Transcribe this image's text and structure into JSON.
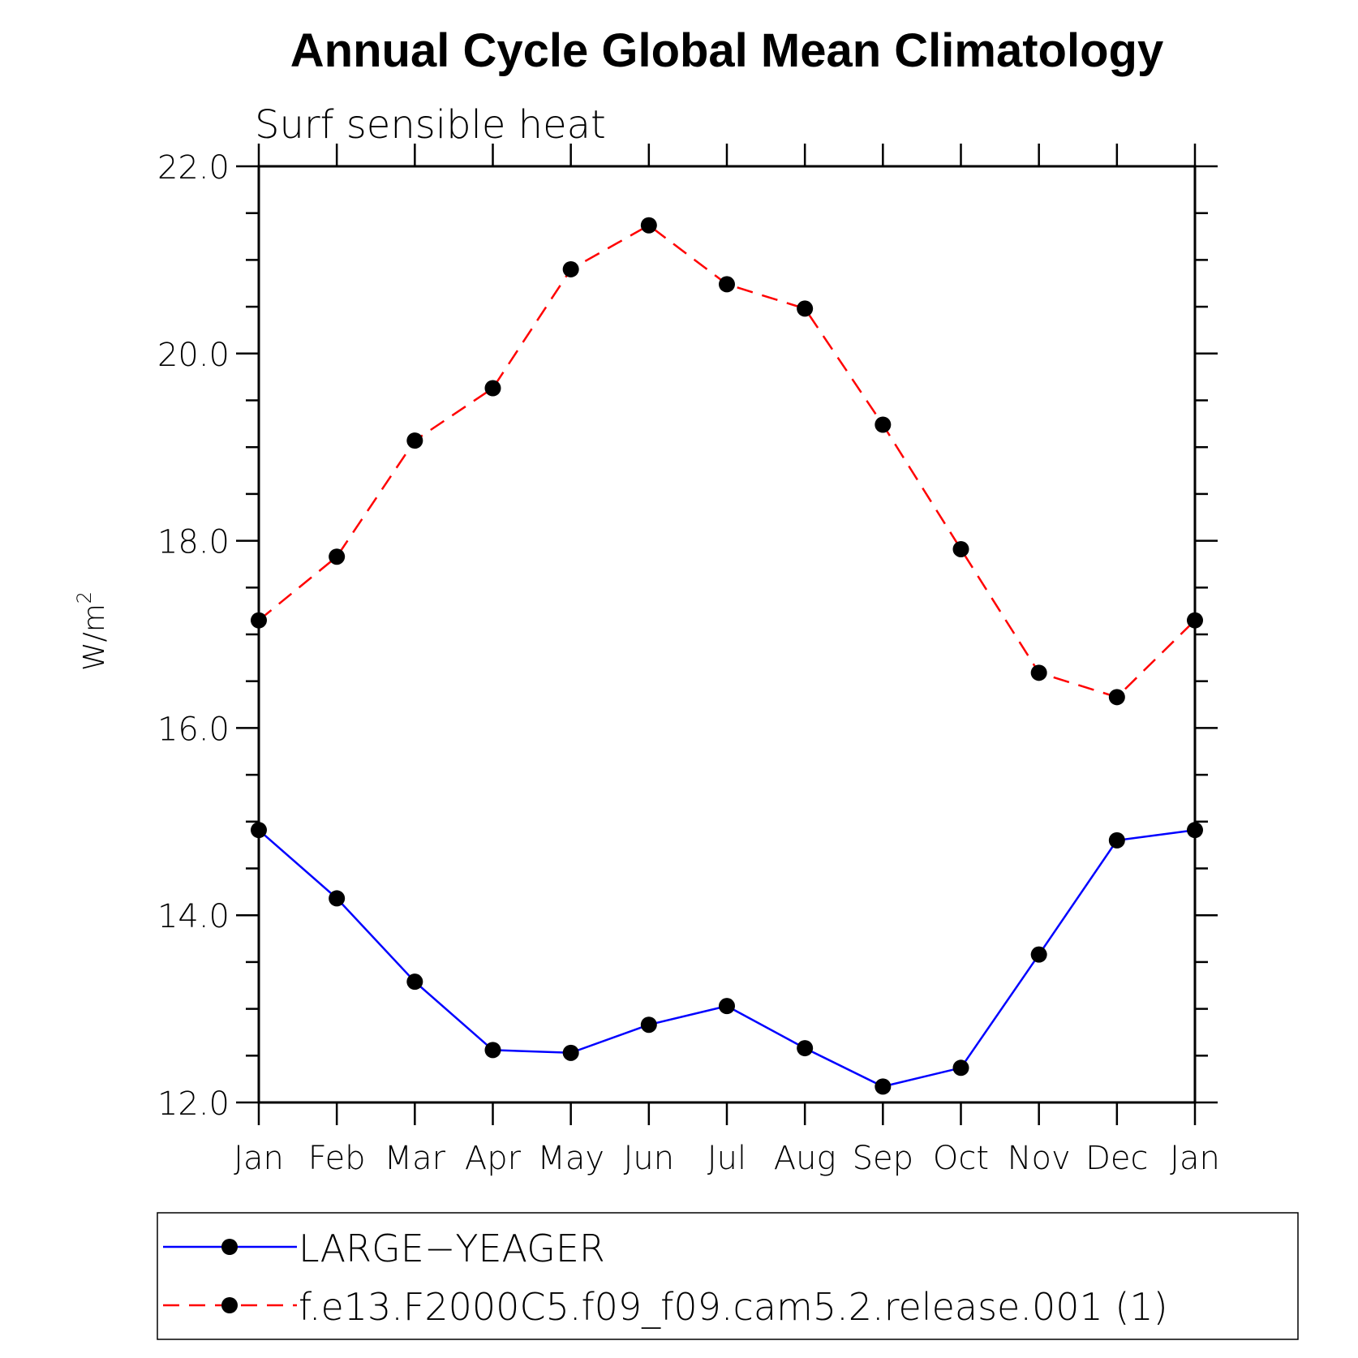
{
  "chart_data": {
    "type": "line",
    "title": "Annual Cycle Global Mean Climatology",
    "subtitle": "Surf sensible heat",
    "ylabel": "W/m",
    "ylabel_sup": "2",
    "xlabel": "",
    "categories": [
      "Jan",
      "Feb",
      "Mar",
      "Apr",
      "May",
      "Jun",
      "Jul",
      "Aug",
      "Sep",
      "Oct",
      "Nov",
      "Dec",
      "Jan"
    ],
    "ylim": [
      12.0,
      22.0
    ],
    "yticks": [
      "12.0",
      "14.0",
      "16.0",
      "18.0",
      "20.0",
      "22.0"
    ],
    "ytick_values": [
      12,
      14,
      16,
      18,
      20,
      22
    ],
    "legend_placement": "bottom",
    "series": [
      {
        "name": "LARGE−YEAGER",
        "color": "#0000ff",
        "dash": "solid",
        "values": [
          14.91,
          14.18,
          13.29,
          12.56,
          12.53,
          12.83,
          13.03,
          12.58,
          12.17,
          12.37,
          13.58,
          14.8,
          14.91
        ]
      },
      {
        "name": "f.e13.F2000C5.f09_f09.cam5.2.release.001 (1)",
        "color": "#ff0000",
        "dash": "dashed",
        "values": [
          17.15,
          17.83,
          19.07,
          19.63,
          20.9,
          21.37,
          20.74,
          20.48,
          19.24,
          17.91,
          16.59,
          16.33,
          17.15
        ]
      }
    ],
    "marker_color": "#000000"
  }
}
